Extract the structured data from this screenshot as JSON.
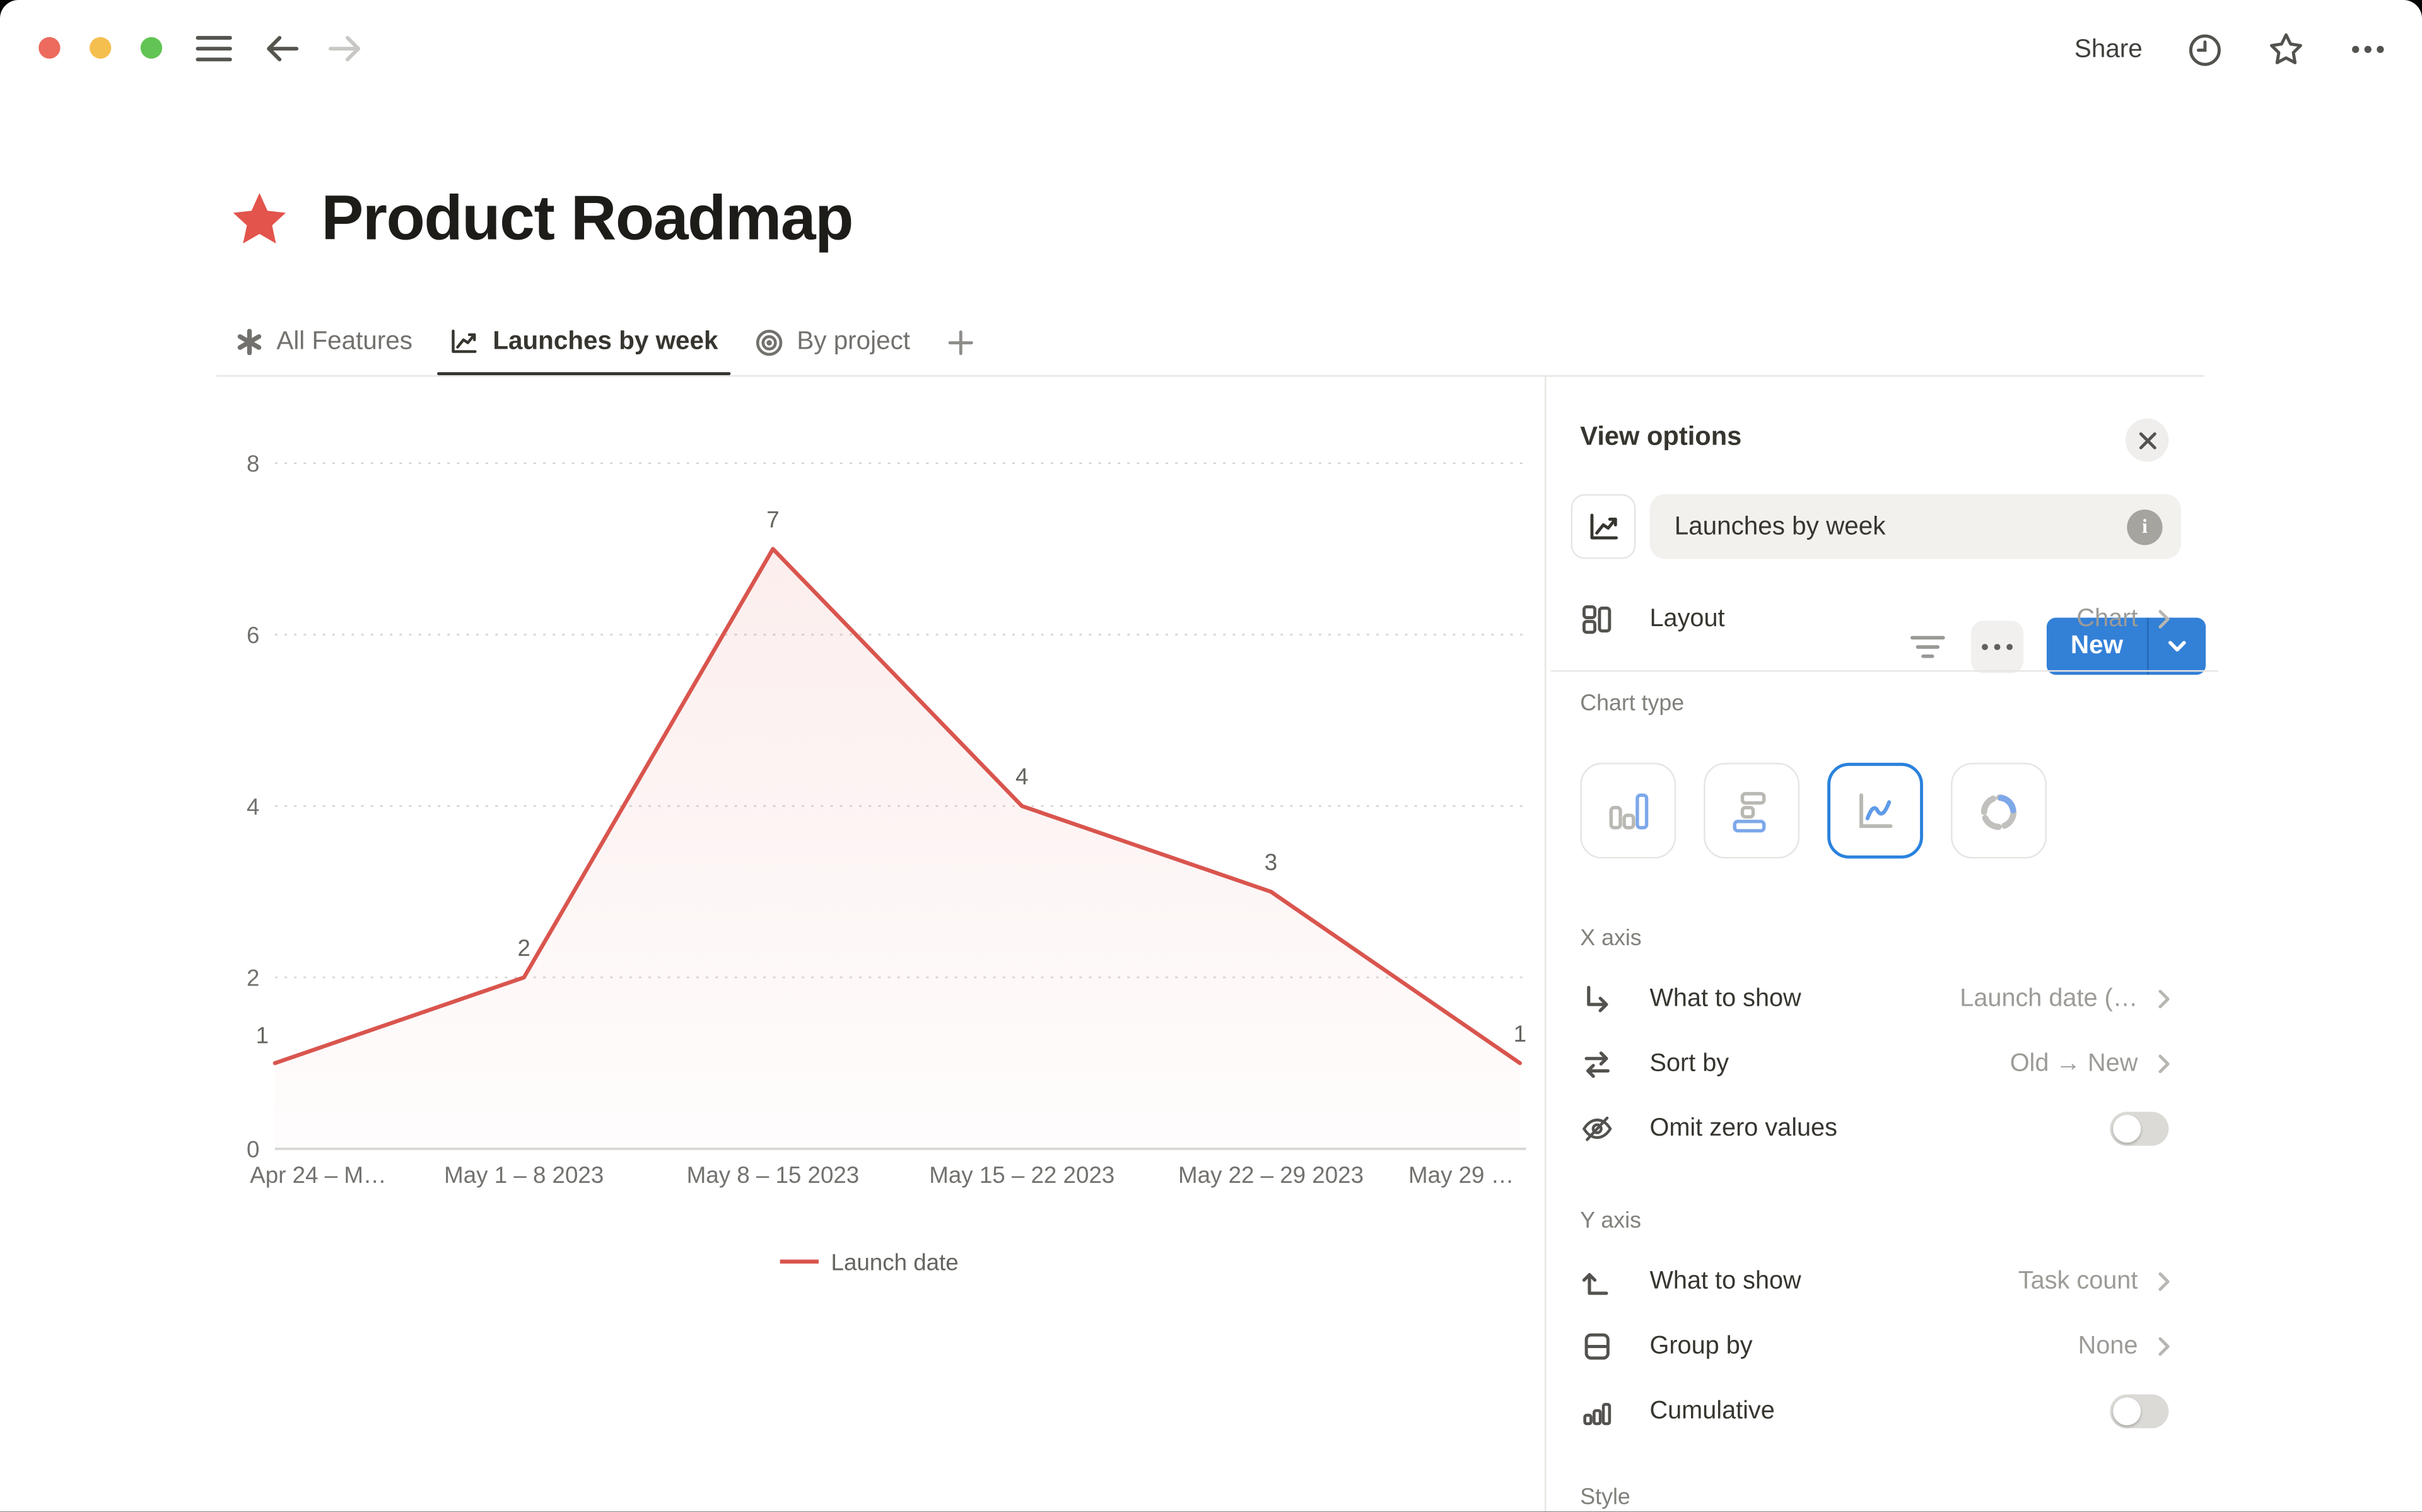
{
  "topbar": {
    "share_label": "Share"
  },
  "page": {
    "title": "Product Roadmap",
    "star_color": "#e2544c"
  },
  "tabs": [
    {
      "label": "All Features"
    },
    {
      "label": "Launches by week"
    },
    {
      "label": "By project"
    }
  ],
  "toolbar": {
    "new_label": "New",
    "accent_color": "#3380d7"
  },
  "panel": {
    "title": "View options",
    "view_name": "Launches by week",
    "layout": {
      "label": "Layout",
      "value": "Chart"
    },
    "chart_type_label": "Chart type",
    "x_axis": {
      "section": "X axis",
      "what_to_show": {
        "label": "What to show",
        "value": "Launch date (…"
      },
      "sort_by": {
        "label": "Sort by",
        "value": "Old → New"
      },
      "omit_zero": {
        "label": "Omit zero values",
        "enabled": false
      }
    },
    "y_axis": {
      "section": "Y axis",
      "what_to_show": {
        "label": "What to show",
        "value": "Task count"
      },
      "group_by": {
        "label": "Group by",
        "value": "None"
      },
      "cumulative": {
        "label": "Cumulative",
        "enabled": false
      }
    },
    "style_section": "Style"
  },
  "chart_data": {
    "type": "line",
    "categories": [
      "Apr 24 – M…",
      "May 1 – 8 2023",
      "May 8 – 15 2023",
      "May 15 – 22 2023",
      "May 22 – 29 2023",
      "May 29 …"
    ],
    "series": [
      {
        "name": "Launch date",
        "values": [
          1,
          2,
          7,
          4,
          3,
          1
        ],
        "color": "#d9554e"
      }
    ],
    "y_ticks": [
      0,
      2,
      4,
      6,
      8
    ],
    "ylim": [
      0,
      8
    ],
    "grid": "dotted-horizontal",
    "legend_position": "bottom",
    "data_labels": true,
    "title": "",
    "xlabel": "",
    "ylabel": ""
  }
}
